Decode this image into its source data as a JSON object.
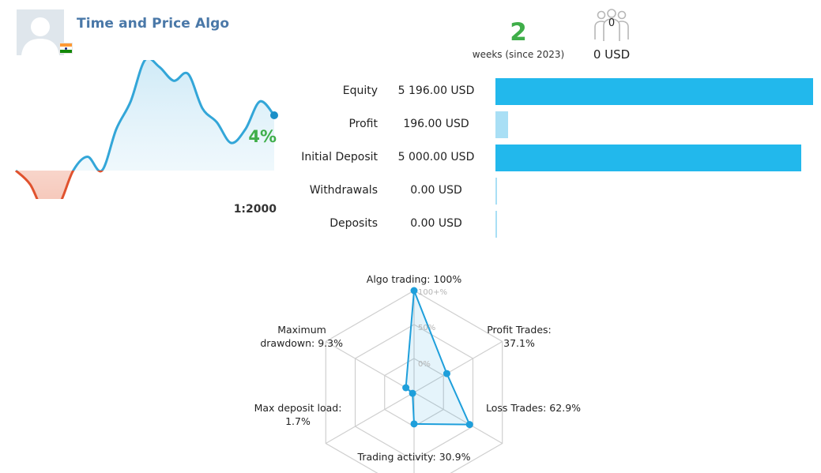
{
  "profile": {
    "name": "Time and Price Algo",
    "avatar_icon": "user-avatar-icon",
    "flag_icon": "india-flag-icon"
  },
  "stats": {
    "weeks_value": "2",
    "weeks_label": "weeks (since 2023)",
    "subscribers_icon": "subscribers-icon",
    "subscribers_count": "0",
    "subscribers_fee": "0 USD"
  },
  "growth": {
    "percent_label": "4%",
    "leverage_label": "1:2000",
    "positive_color": "#33a6d8",
    "negative_color": "#e0522e",
    "chart_data": {
      "type": "area",
      "title": "",
      "series": [
        {
          "values": [
            0,
            -1,
            -3,
            -2.5,
            0,
            1,
            0,
            3,
            5,
            8,
            7.5,
            6.5,
            7,
            4.5,
            3.5,
            2,
            3,
            5,
            4
          ]
        }
      ]
    }
  },
  "balances": {
    "rows": [
      {
        "label": "Equity",
        "value": "5 196.00 USD",
        "amount": 5196.0,
        "color": "#22b8ec"
      },
      {
        "label": "Profit",
        "value": "196.00 USD",
        "amount": 196.0,
        "color": "#a9dff5"
      },
      {
        "label": "Initial Deposit",
        "value": "5 000.00 USD",
        "amount": 5000.0,
        "color": "#22b8ec"
      },
      {
        "label": "Withdrawals",
        "value": "0.00 USD",
        "amount": 0.0,
        "color": "#a9dff5"
      },
      {
        "label": "Deposits",
        "value": "0.00 USD",
        "amount": 0.0,
        "color": "#a9dff5"
      }
    ]
  },
  "radar": {
    "chart_data": {
      "type": "radar",
      "scale_labels": [
        "100+%",
        "50%",
        "0%"
      ],
      "axes": [
        {
          "label": "Algo trading: 100%",
          "value": 100
        },
        {
          "label": "Profit Trades: 37.1%",
          "value": 37.1
        },
        {
          "label": "Loss Trades: 62.9%",
          "value": 62.9
        },
        {
          "label": "Trading activity: 30.9%",
          "value": 30.9
        },
        {
          "label": "Max deposit load: 1.7%",
          "value": 1.7
        },
        {
          "label": "Maximum drawdown: 9.3%",
          "value": 9.3
        }
      ]
    }
  }
}
